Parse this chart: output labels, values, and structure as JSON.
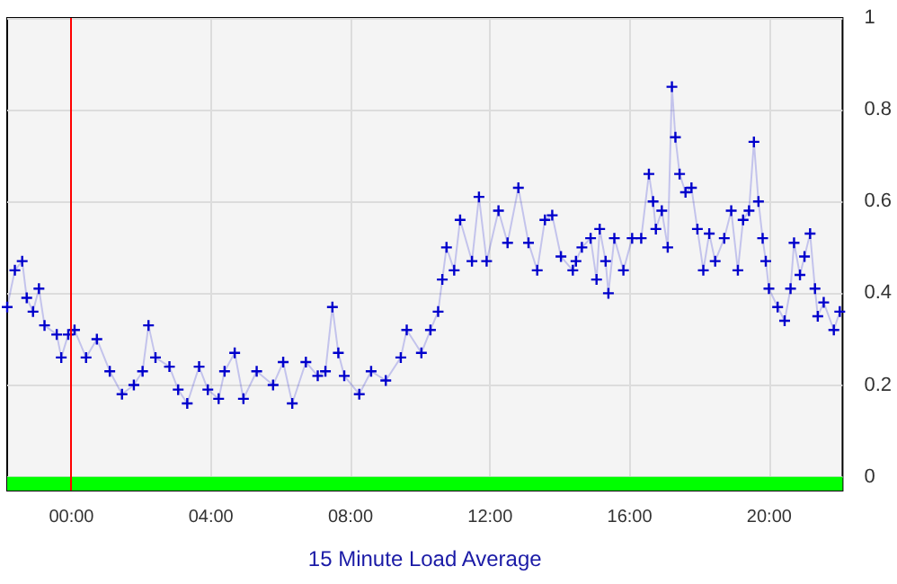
{
  "chart_data": {
    "type": "line",
    "xlabel": "15 Minute Load Average",
    "x": [
      -1.84,
      -1.62,
      -1.41,
      -1.28,
      -1.1,
      -0.93,
      -0.77,
      -0.42,
      -0.29,
      -0.09,
      0.09,
      0.42,
      0.73,
      1.1,
      1.45,
      1.79,
      2.04,
      2.21,
      2.41,
      2.81,
      3.06,
      3.32,
      3.66,
      3.91,
      4.22,
      4.39,
      4.68,
      4.93,
      5.31,
      5.78,
      6.07,
      6.33,
      6.72,
      7.06,
      7.28,
      7.48,
      7.65,
      7.82,
      8.25,
      8.59,
      9.01,
      9.44,
      9.61,
      10.03,
      10.29,
      10.51,
      10.63,
      10.75,
      10.97,
      11.14,
      11.48,
      11.68,
      11.9,
      12.24,
      12.5,
      12.81,
      13.1,
      13.35,
      13.57,
      13.78,
      14.03,
      14.37,
      14.46,
      14.63,
      14.88,
      15.05,
      15.14,
      15.31,
      15.39,
      15.56,
      15.82,
      16.07,
      16.33,
      16.55,
      16.67,
      16.75,
      16.92,
      17.09,
      17.21,
      17.31,
      17.43,
      17.6,
      17.77,
      17.94,
      18.11,
      18.28,
      18.45,
      18.71,
      18.91,
      19.1,
      19.25,
      19.42,
      19.56,
      19.69,
      19.81,
      19.9,
      19.99,
      20.24,
      20.44,
      20.61,
      20.71,
      20.88,
      21.01,
      21.17,
      21.31,
      21.39,
      21.56,
      21.85,
      22.02
    ],
    "series": [
      {
        "color": "#0000cc",
        "values": [
          0.37,
          0.45,
          0.47,
          0.39,
          0.36,
          0.41,
          0.33,
          0.31,
          0.26,
          0.31,
          0.32,
          0.26,
          0.3,
          0.23,
          0.18,
          0.2,
          0.23,
          0.33,
          0.26,
          0.24,
          0.19,
          0.16,
          0.24,
          0.19,
          0.17,
          0.23,
          0.27,
          0.17,
          0.23,
          0.2,
          0.25,
          0.16,
          0.25,
          0.22,
          0.23,
          0.37,
          0.27,
          0.22,
          0.18,
          0.23,
          0.21,
          0.26,
          0.32,
          0.27,
          0.32,
          0.36,
          0.43,
          0.5,
          0.45,
          0.56,
          0.47,
          0.61,
          0.47,
          0.58,
          0.51,
          0.63,
          0.51,
          0.45,
          0.56,
          0.57,
          0.48,
          0.45,
          0.47,
          0.5,
          0.52,
          0.43,
          0.54,
          0.47,
          0.4,
          0.52,
          0.45,
          0.52,
          0.52,
          0.66,
          0.6,
          0.54,
          0.58,
          0.5,
          0.85,
          0.74,
          0.66,
          0.62,
          0.63,
          0.54,
          0.45,
          0.53,
          0.47,
          0.52,
          0.58,
          0.45,
          0.56,
          0.58,
          0.73,
          0.6,
          0.52,
          0.47,
          0.41,
          0.37,
          0.34,
          0.41,
          0.51,
          0.44,
          0.48,
          0.53,
          0.41,
          0.35,
          0.38,
          0.32,
          0.36
        ]
      }
    ],
    "xlim": [
      -1.84,
      22.1
    ],
    "xticks": [
      {
        "value": 0,
        "label": "00:00"
      },
      {
        "value": 4,
        "label": "04:00"
      },
      {
        "value": 8,
        "label": "08:00"
      },
      {
        "value": 12,
        "label": "12:00"
      },
      {
        "value": 16,
        "label": "16:00"
      },
      {
        "value": 20,
        "label": "20:00"
      }
    ],
    "ylim": [
      -0.03,
      1
    ],
    "yticks": [
      0,
      0.2,
      0.4,
      0.6,
      0.8,
      1
    ],
    "grid": true,
    "marker": "cross",
    "line_style": "solid",
    "ref_lines": [
      {
        "axis": "x",
        "value": 0,
        "color": "#ff0000"
      }
    ],
    "bands": [
      {
        "axis": "y",
        "from": -0.03,
        "to": 0,
        "color": "#00ff00"
      }
    ]
  }
}
